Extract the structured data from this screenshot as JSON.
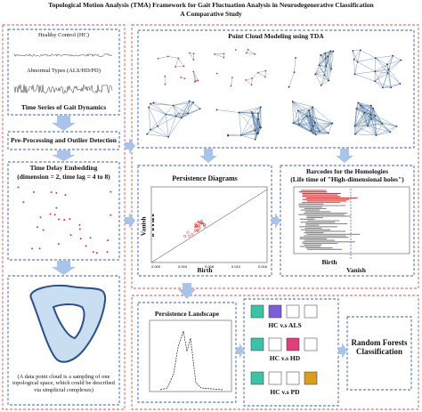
{
  "header": {
    "title": "Topological Motion Analysis (TMA) Framework for Gait Fluctuation Analysis in Neurodegenerative Classification",
    "subtitle": "A Comparative Study"
  },
  "time_series": {
    "healthy_label": "Healthy Control (HC)",
    "abnormal_label": "Abnormal Types (ALS/HD/PD)",
    "caption": "Time Series of Gait Dynamics"
  },
  "preprocessing": {
    "label": "Pre-Processing and Outlier Detection"
  },
  "embedding": {
    "title": "Time Delay Embedding",
    "params": "(dimension = 2, time lag = 4 to 8)"
  },
  "point_cloud_note": {
    "text": "(A data point cloud is a sampling of one topological space, which could be described via simplicial complexes)"
  },
  "point_cloud_modeling": {
    "title": "Point Cloud Modeling using TDA"
  },
  "persistence_diagram": {
    "title": "Persistence Diagrams",
    "y_label": "Vanish",
    "x_label": "Birth",
    "xticks": [
      "0.000",
      "0.004",
      "0.008",
      "0.012",
      "0.016"
    ]
  },
  "barcodes": {
    "title": "Barcodes for the Homologies",
    "subtitle": "(Life time of \"High-dimensional holes\")",
    "x_label": "Birth",
    "y_label": "Vanish"
  },
  "landscape": {
    "title": "Persistence Landscape"
  },
  "comparisons": [
    "HC v.s ALS",
    "HC v.s HD",
    "HC v.s PD"
  ],
  "classifier": {
    "label": "Random Forests Classification"
  }
}
